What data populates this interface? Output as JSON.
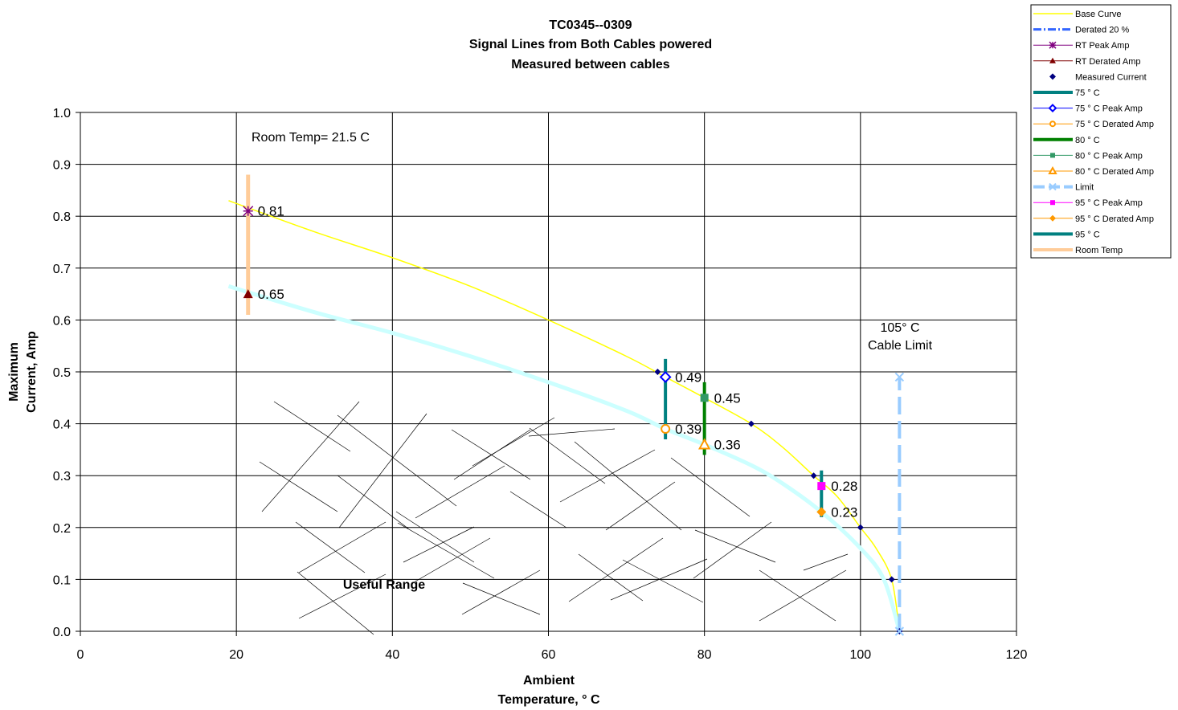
{
  "chart_data": {
    "type": "scatter",
    "title": [
      "TC0345--0309",
      "Signal Lines from Both Cables powered",
      "Measured between cables"
    ],
    "xlabel": [
      "Ambient",
      "Temperature,  ° C"
    ],
    "ylabel": [
      "Maximum",
      "Current, Amp"
    ],
    "xlim": [
      0,
      120
    ],
    "ylim": [
      0,
      1.0
    ],
    "x_ticks": [
      "0",
      "20",
      "40",
      "60",
      "80",
      "100",
      "120"
    ],
    "y_ticks": [
      "0.0",
      "0.1",
      "0.2",
      "0.3",
      "0.4",
      "0.5",
      "0.6",
      "0.7",
      "0.8",
      "0.9",
      "1.0"
    ],
    "grid": true,
    "legend_position": "top-right",
    "annotations": {
      "room_temp": "Room Temp= 21.5 C",
      "limit_line1": "105° C",
      "limit_line2": "Cable Limit",
      "useful_range": "Useful Range"
    },
    "series": [
      {
        "name": "Base Curve",
        "color": "#ffff00",
        "style": "line",
        "points": [
          [
            19,
            0.83
          ],
          [
            30,
            0.77
          ],
          [
            40,
            0.72
          ],
          [
            50,
            0.665
          ],
          [
            60,
            0.6
          ],
          [
            70,
            0.53
          ],
          [
            75,
            0.49
          ],
          [
            80,
            0.45
          ],
          [
            86,
            0.4
          ],
          [
            90,
            0.355
          ],
          [
            94,
            0.3
          ],
          [
            97,
            0.26
          ],
          [
            100,
            0.2
          ],
          [
            102,
            0.16
          ],
          [
            104,
            0.1
          ],
          [
            105,
            0.0
          ]
        ]
      },
      {
        "name": "Derated 20 %",
        "color": "#ccffff",
        "style": "line",
        "points": [
          [
            19,
            0.665
          ],
          [
            30,
            0.615
          ],
          [
            40,
            0.575
          ],
          [
            50,
            0.53
          ],
          [
            60,
            0.48
          ],
          [
            70,
            0.425
          ],
          [
            75,
            0.39
          ],
          [
            80,
            0.36
          ],
          [
            86,
            0.32
          ],
          [
            90,
            0.285
          ],
          [
            95,
            0.23
          ],
          [
            100,
            0.16
          ],
          [
            103,
            0.1
          ],
          [
            105,
            0.0
          ]
        ]
      },
      {
        "name": "RT Peak Amp",
        "color": "#800080",
        "marker": "asterisk",
        "points": [
          [
            21.5,
            0.81
          ]
        ],
        "labels": [
          "0.81"
        ]
      },
      {
        "name": "RT Derated Amp",
        "color": "#800000",
        "marker": "triangle",
        "points": [
          [
            21.5,
            0.65
          ]
        ],
        "labels": [
          "0.65"
        ]
      },
      {
        "name": "Measured Current",
        "color": "#000080",
        "marker": "diamond",
        "points": [
          [
            74,
            0.5
          ],
          [
            86,
            0.4
          ],
          [
            94,
            0.3
          ],
          [
            100,
            0.2
          ],
          [
            104,
            0.1
          ],
          [
            105,
            0.0
          ]
        ]
      },
      {
        "name": "75 ° C",
        "color": "#008080",
        "style": "vline",
        "points": [
          [
            75,
            0.37
          ],
          [
            75,
            0.525
          ]
        ]
      },
      {
        "name": "75  ° C Peak Amp",
        "color": "#0000ff",
        "marker": "diamond-open",
        "points": [
          [
            75,
            0.49
          ]
        ],
        "labels": [
          "0.49"
        ]
      },
      {
        "name": "75  ° C Derated Amp",
        "color": "#ff9900",
        "marker": "circle-open",
        "points": [
          [
            75,
            0.39
          ]
        ],
        "labels": [
          "0.39"
        ]
      },
      {
        "name": "80  ° C",
        "color": "#008000",
        "style": "vline",
        "points": [
          [
            80,
            0.34
          ],
          [
            80,
            0.48
          ]
        ]
      },
      {
        "name": "80  ° C Peak Amp",
        "color": "#339966",
        "marker": "square",
        "points": [
          [
            80,
            0.45
          ]
        ],
        "labels": [
          "0.45"
        ]
      },
      {
        "name": "80  ° C Derated Amp",
        "color": "#ff9900",
        "marker": "triangle-open",
        "points": [
          [
            80,
            0.36
          ]
        ],
        "labels": [
          "0.36"
        ]
      },
      {
        "name": "Limit",
        "color": "#99ccff",
        "style": "dashed-vline",
        "points": [
          [
            105,
            0.0
          ],
          [
            105,
            0.49
          ]
        ]
      },
      {
        "name": "95  ° C Peak Amp",
        "color": "#ff00ff",
        "marker": "square",
        "points": [
          [
            95,
            0.28
          ]
        ],
        "labels": [
          "0.28"
        ]
      },
      {
        "name": "95  ° C Derated Amp",
        "color": "#ff9900",
        "marker": "diamond",
        "points": [
          [
            95,
            0.23
          ]
        ],
        "labels": [
          "0.23"
        ]
      },
      {
        "name": "95  ° C",
        "color": "#008080",
        "style": "vline",
        "points": [
          [
            95,
            0.22
          ],
          [
            95,
            0.31
          ]
        ]
      },
      {
        "name": "Room Temp",
        "color": "#ffcc99",
        "style": "vline",
        "points": [
          [
            21.5,
            0.61
          ],
          [
            21.5,
            0.88
          ]
        ]
      }
    ]
  }
}
